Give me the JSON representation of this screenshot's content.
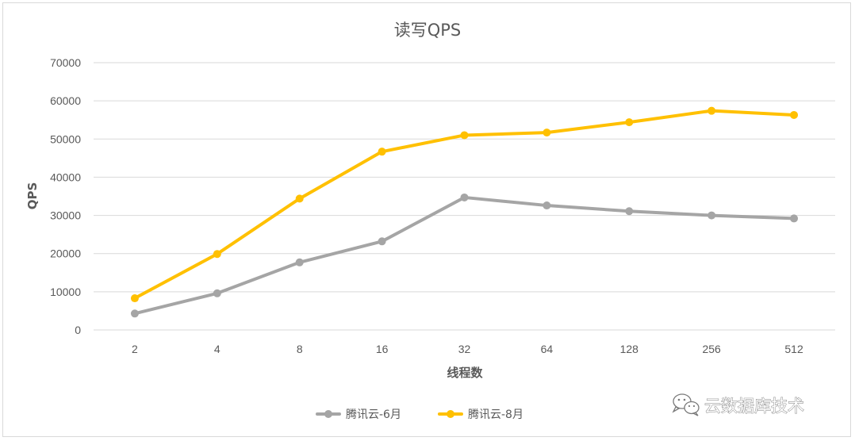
{
  "chart_data": {
    "type": "line",
    "title": "读写QPS",
    "xlabel": "线程数",
    "ylabel": "QPS",
    "categories": [
      "2",
      "4",
      "8",
      "16",
      "32",
      "64",
      "128",
      "256",
      "512"
    ],
    "ylim": [
      0,
      70000
    ],
    "yticks": [
      0,
      10000,
      20000,
      30000,
      40000,
      50000,
      60000,
      70000
    ],
    "ytick_labels": [
      "0",
      "10000",
      "20000",
      "30000",
      "40000",
      "50000",
      "60000",
      "70000"
    ],
    "grid": "horizontal",
    "legend_position": "bottom",
    "series": [
      {
        "name": "腾讯云-6月",
        "color": "#a5a5a5",
        "values": [
          4300,
          9600,
          17700,
          23200,
          34700,
          32600,
          31100,
          30000,
          29200
        ]
      },
      {
        "name": "腾讯云-8月",
        "color": "#ffc000",
        "values": [
          8300,
          19900,
          34400,
          46700,
          51000,
          51700,
          54400,
          57400,
          56300
        ]
      }
    ]
  },
  "watermark": {
    "text": "云数据库技术",
    "icon": "wechat-icon"
  }
}
